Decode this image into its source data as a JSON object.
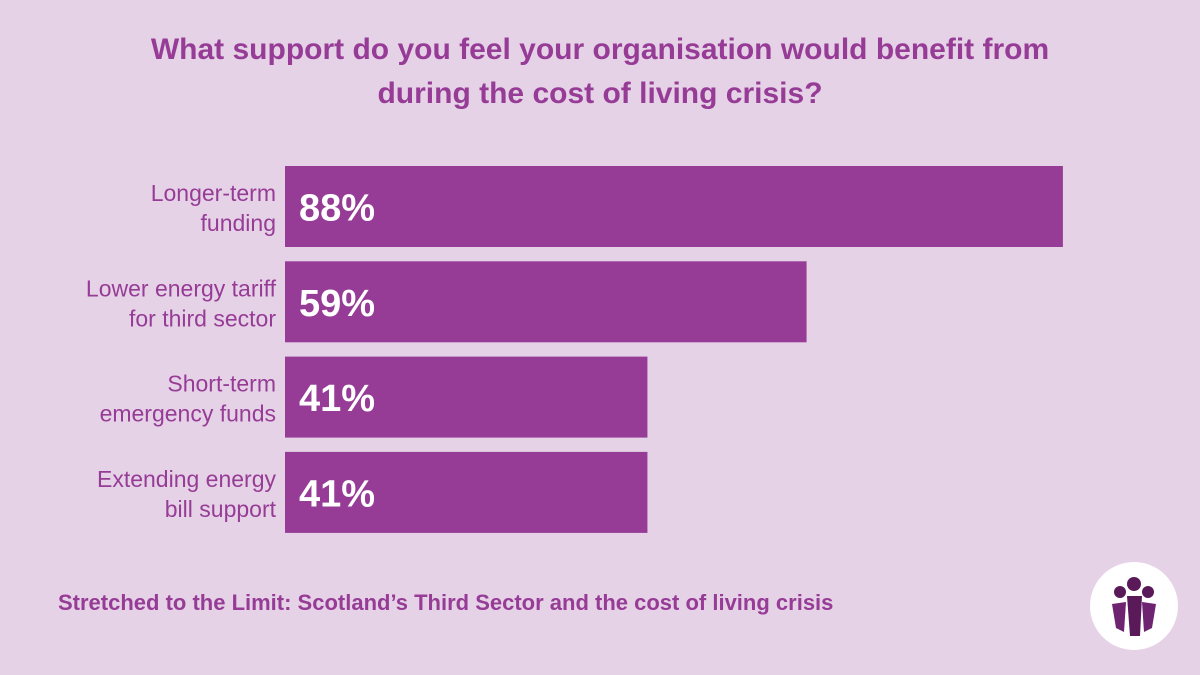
{
  "title_lines": [
    "What support do you feel your organisation would benefit from",
    "during the cost of living crisis?"
  ],
  "footer": "Stretched to the Limit: Scotland’s Third Sector and the cost of living crisis",
  "colors": {
    "background": "#e6d2e6",
    "bar": "#963c96",
    "text": "#963c96",
    "value_text": "#ffffff"
  },
  "logo": {
    "icon": "people-group-icon"
  },
  "chart_data": {
    "type": "bar",
    "orientation": "horizontal",
    "title": "What support do you feel your organisation would benefit from during the cost of living crisis?",
    "categories": [
      [
        "Longer-term",
        "funding"
      ],
      [
        "Lower energy tariff",
        "for third sector"
      ],
      [
        "Short-term",
        "emergency funds"
      ],
      [
        "Extending energy",
        "bill support"
      ]
    ],
    "values": [
      88,
      59,
      41,
      41
    ],
    "value_labels": [
      "88%",
      "59%",
      "41%",
      "41%"
    ],
    "xlim": [
      0,
      100
    ],
    "grid": false,
    "legend": "none"
  }
}
